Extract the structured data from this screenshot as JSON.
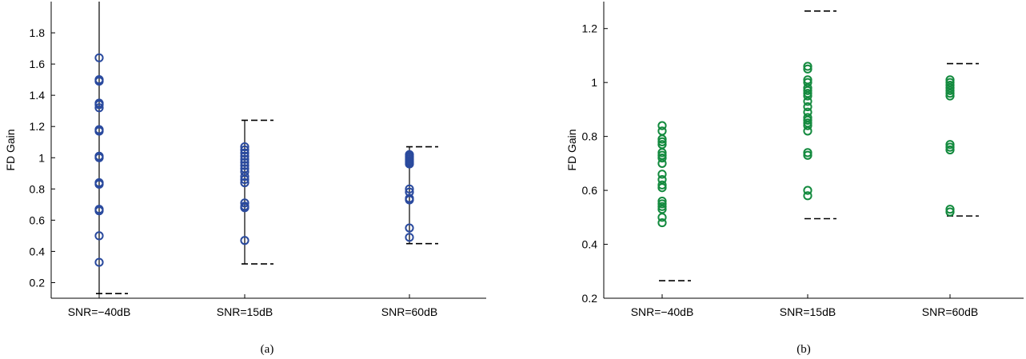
{
  "colors": {
    "panel_a_markers": "#2a4a9e",
    "panel_b_markers": "#138a3e",
    "axis": "#000000",
    "whisker": "#000000"
  },
  "chart_data": [
    {
      "type": "scatter",
      "panel": "a",
      "caption": "(a)",
      "ylabel": "FD Gain",
      "xlabel": "",
      "categories": [
        "SNR=−40dB",
        "SNR=15dB",
        "SNR=60dB"
      ],
      "ylim": [
        0.1,
        2.0
      ],
      "yticks": [
        0.2,
        0.4,
        0.6,
        0.8,
        1,
        1.2,
        1.4,
        1.6,
        1.8
      ],
      "ytick_labels": [
        "0.2",
        "0.4",
        "0.6",
        "0.8",
        "1",
        "1.2",
        "1.4",
        "1.6",
        "1.8"
      ],
      "marker_color": "#2a4a9e",
      "marker_fill": "none",
      "whisker": true,
      "points": [
        [
          1.64,
          1.5,
          1.49,
          1.35,
          1.34,
          1.32,
          1.18,
          1.17,
          1.01,
          1.0,
          0.84,
          0.83,
          0.67,
          0.66,
          0.5,
          0.33
        ],
        [
          1.07,
          1.05,
          1.03,
          1.01,
          0.99,
          0.97,
          0.95,
          0.93,
          0.91,
          0.88,
          0.86,
          0.84,
          0.71,
          0.69,
          0.68,
          0.47
        ],
        [
          1.02,
          1.01,
          1.0,
          0.99,
          0.98,
          0.97,
          0.96,
          0.8,
          0.78,
          0.74,
          0.73,
          0.55,
          0.49
        ]
      ],
      "lower_bound": [
        0.13,
        0.32,
        0.45
      ],
      "upper_bound": [
        2.05,
        1.24,
        1.07
      ],
      "dashed_lower": [
        0.13,
        0.32,
        0.45
      ],
      "dashed_upper": [
        null,
        1.24,
        1.07
      ],
      "grid": false,
      "legend": "none"
    },
    {
      "type": "scatter",
      "panel": "b",
      "caption": "(b)",
      "ylabel": "FD Gain",
      "xlabel": "",
      "categories": [
        "SNR=−40dB",
        "SNR=15dB",
        "SNR=60dB"
      ],
      "ylim": [
        0.2,
        1.3
      ],
      "yticks": [
        0.2,
        0.4,
        0.6,
        0.8,
        1,
        1.2
      ],
      "ytick_labels": [
        "0.2",
        "0.4",
        "0.6",
        "0.8",
        "1",
        "1.2"
      ],
      "marker_color": "#138a3e",
      "marker_fill": "none",
      "whisker": false,
      "points": [
        [
          0.84,
          0.82,
          0.79,
          0.78,
          0.77,
          0.74,
          0.73,
          0.72,
          0.7,
          0.66,
          0.64,
          0.62,
          0.61,
          0.56,
          0.55,
          0.54,
          0.53,
          0.5,
          0.48
        ],
        [
          1.06,
          1.05,
          1.01,
          1.0,
          0.98,
          0.97,
          0.96,
          0.95,
          0.93,
          0.91,
          0.89,
          0.87,
          0.86,
          0.85,
          0.84,
          0.82,
          0.74,
          0.73,
          0.6,
          0.58
        ],
        [
          1.01,
          1.0,
          0.99,
          0.98,
          0.97,
          0.96,
          0.95,
          0.77,
          0.76,
          0.75,
          0.53,
          0.52
        ]
      ],
      "dashed_lower": [
        0.265,
        0.495,
        0.505
      ],
      "dashed_upper": [
        null,
        1.265,
        1.07
      ],
      "grid": false,
      "legend": "none"
    }
  ]
}
